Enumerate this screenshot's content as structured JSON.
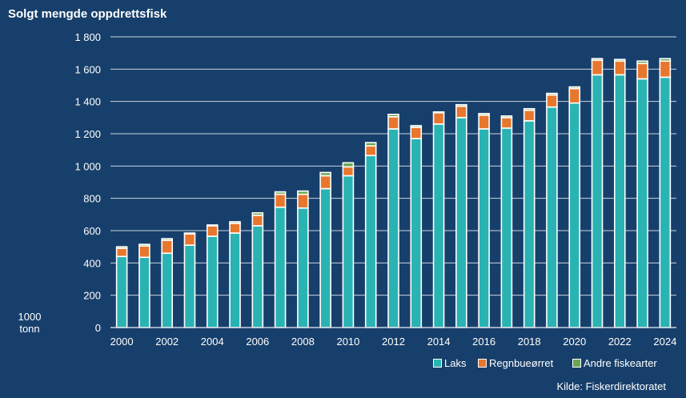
{
  "chart_data": {
    "type": "bar",
    "stacked": true,
    "title": "Solgt mengde oppdrettsfisk",
    "ylabel": "1000 tonn",
    "xlabel": "",
    "ylim": [
      0,
      1800
    ],
    "yticks": [
      0,
      200,
      400,
      600,
      800,
      1000,
      1200,
      1400,
      1600,
      1800
    ],
    "ytick_labels": [
      "0",
      "200",
      "400",
      "600",
      "800",
      "1 000",
      "1 200",
      "1 400",
      "1 600",
      "1 800"
    ],
    "grid": true,
    "legend_position": "bottom-right",
    "categories": [
      2000,
      2001,
      2002,
      2003,
      2004,
      2005,
      2006,
      2007,
      2008,
      2009,
      2010,
      2011,
      2012,
      2013,
      2014,
      2015,
      2016,
      2017,
      2018,
      2019,
      2020,
      2021,
      2022,
      2023,
      2024
    ],
    "xtick_labels": [
      "2000",
      "2002",
      "2004",
      "2006",
      "2008",
      "2010",
      "2012",
      "2014",
      "2016",
      "2018",
      "2020",
      "2022",
      "2024"
    ],
    "series": [
      {
        "name": "Laks",
        "color": "#2ab3b3",
        "values": [
          440,
          435,
          460,
          510,
          565,
          585,
          630,
          745,
          740,
          860,
          940,
          1065,
          1230,
          1170,
          1260,
          1300,
          1230,
          1235,
          1280,
          1365,
          1390,
          1565,
          1565,
          1540,
          1550
        ]
      },
      {
        "name": "Regnbueørret",
        "color": "#e8772e",
        "values": [
          50,
          70,
          80,
          70,
          65,
          60,
          65,
          80,
          85,
          80,
          55,
          60,
          75,
          70,
          70,
          70,
          85,
          65,
          65,
          75,
          90,
          90,
          85,
          95,
          100
        ]
      },
      {
        "name": "Andre fiskearter",
        "color": "#6aa84f",
        "values": [
          10,
          10,
          10,
          5,
          5,
          10,
          15,
          15,
          20,
          20,
          25,
          20,
          15,
          10,
          5,
          10,
          10,
          10,
          10,
          10,
          10,
          10,
          10,
          15,
          15
        ]
      }
    ],
    "source": "Kilde: Fiskerdirektoratet"
  },
  "colors": {
    "background": "#173f6b",
    "grid": "#c9d4e0"
  }
}
